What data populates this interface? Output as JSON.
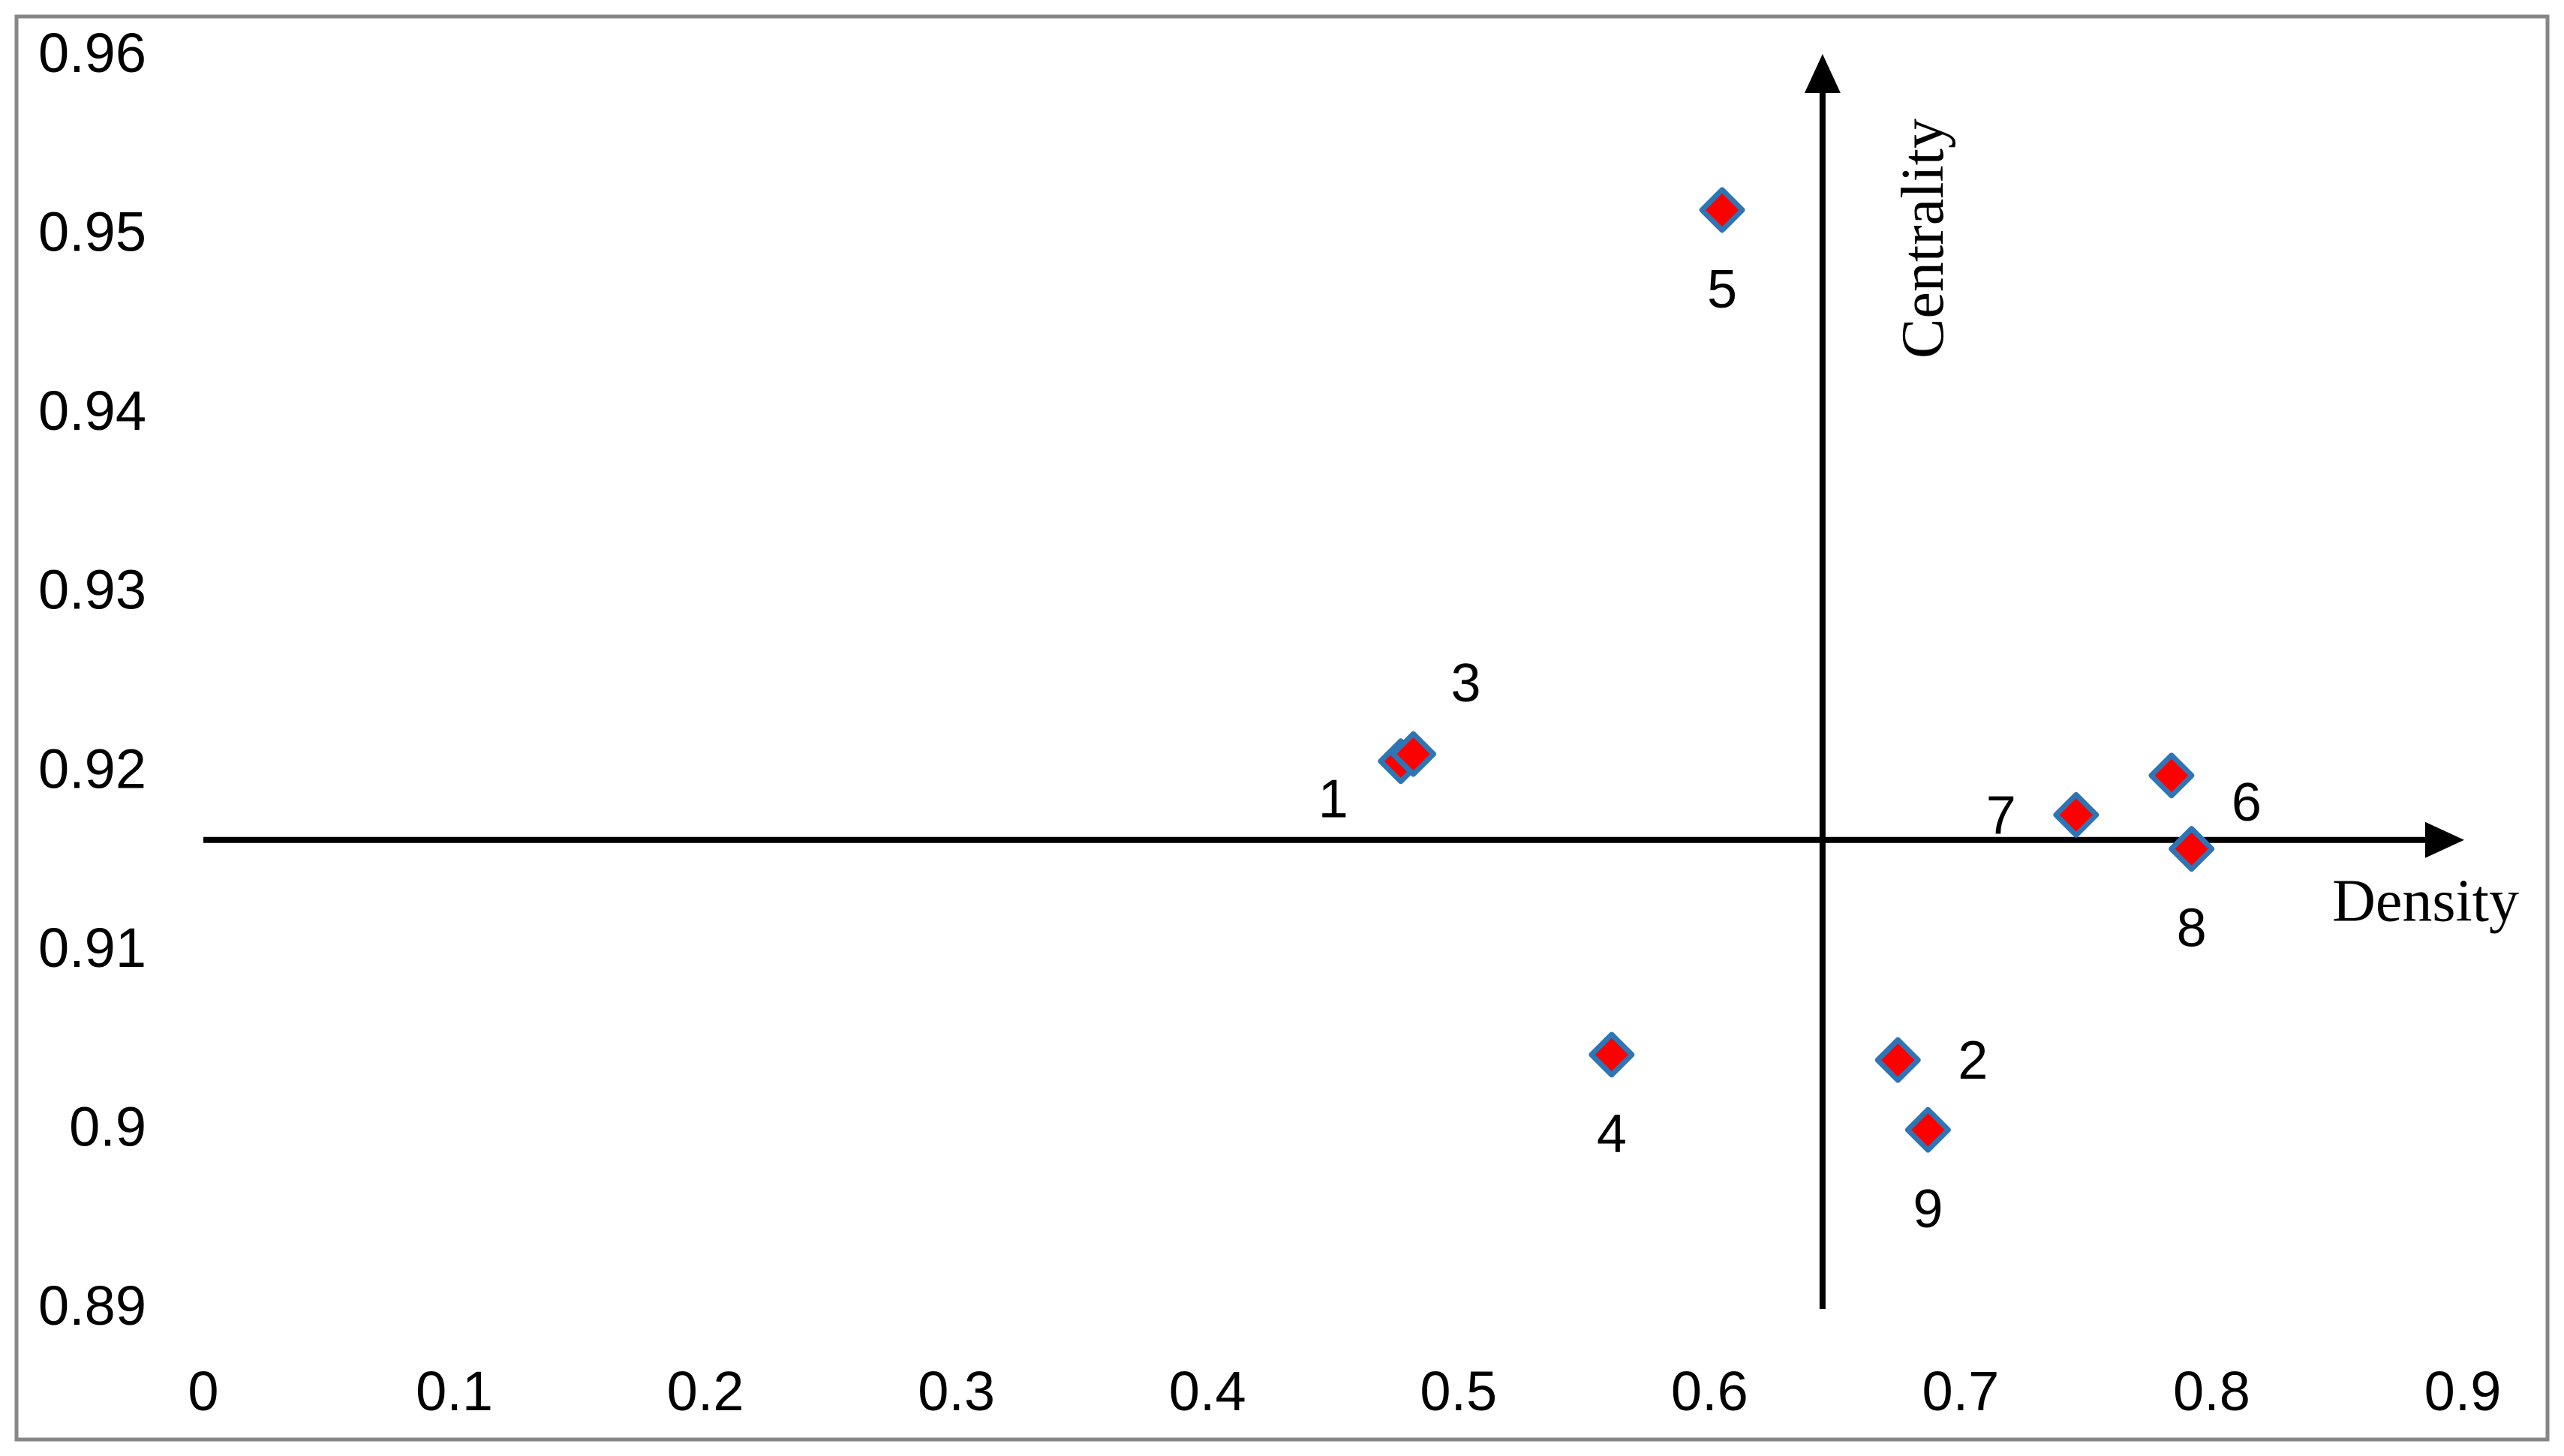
{
  "chart_data": {
    "type": "scatter",
    "title": "",
    "xlabel": "Density",
    "ylabel": "Centrality",
    "xlim": [
      0,
      0.9
    ],
    "ylim": [
      0.89,
      0.96
    ],
    "x_ticks": [
      0,
      0.1,
      0.2,
      0.3,
      0.4,
      0.5,
      0.6,
      0.7,
      0.8,
      0.9
    ],
    "x_tick_labels": [
      "0",
      "0.1",
      "0.2",
      "0.3",
      "0.4",
      "0.5",
      "0.6",
      "0.7",
      "0.8",
      "0.9"
    ],
    "y_ticks": [
      0.89,
      0.9,
      0.91,
      0.92,
      0.93,
      0.94,
      0.95,
      0.96
    ],
    "y_tick_labels": [
      "0.89",
      "0.9",
      "0.91",
      "0.92",
      "0.93",
      "0.94",
      "0.95",
      "0.96"
    ],
    "cross_axes": {
      "x": 0.645,
      "y": 0.916
    },
    "grid": false,
    "legend": null,
    "marker": {
      "shape": "diamond",
      "fill": "#ff0000",
      "stroke": "#2e75b6"
    },
    "axis_color": "#000000",
    "frame_color": "#868686",
    "points": [
      {
        "label": "1",
        "x": 0.477,
        "y": 0.9204,
        "label_pos": "bottom-left"
      },
      {
        "label": "2",
        "x": 0.675,
        "y": 0.9037,
        "label_pos": "right"
      },
      {
        "label": "3",
        "x": 0.482,
        "y": 0.9208,
        "label_pos": "top-right"
      },
      {
        "label": "4",
        "x": 0.561,
        "y": 0.904,
        "label_pos": "below"
      },
      {
        "label": "5",
        "x": 0.605,
        "y": 0.9512,
        "label_pos": "below"
      },
      {
        "label": "6",
        "x": 0.784,
        "y": 0.9196,
        "label_pos": "bottom-right"
      },
      {
        "label": "7",
        "x": 0.746,
        "y": 0.9174,
        "label_pos": "left"
      },
      {
        "label": "8",
        "x": 0.792,
        "y": 0.9155,
        "label_pos": "below"
      },
      {
        "label": "9",
        "x": 0.687,
        "y": 0.8998,
        "label_pos": "below"
      }
    ]
  }
}
